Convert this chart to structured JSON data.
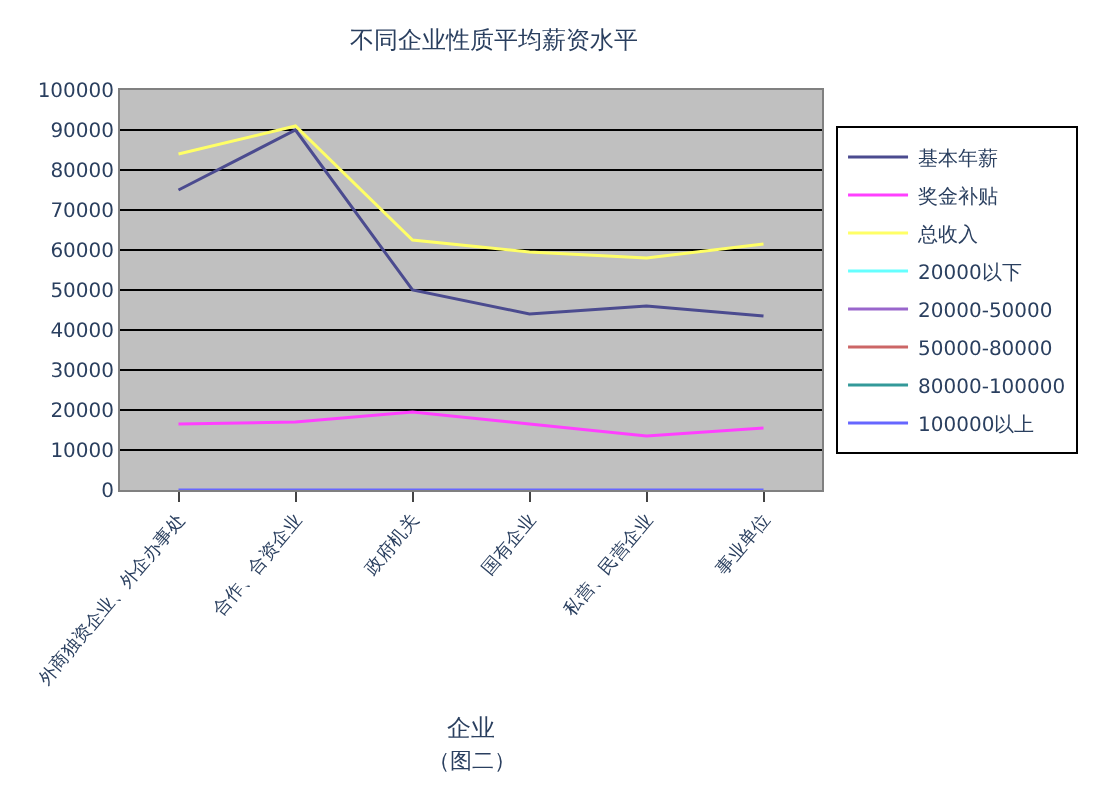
{
  "chart_data": {
    "type": "line",
    "title": "不同企业性质平均薪资水平",
    "xlabel": "企业",
    "categories": [
      "外商独资企业、外企办事处",
      "合作、合资企业",
      "政府机关",
      "国有企业",
      "私营、民营企业",
      "事业单位"
    ],
    "series": [
      {
        "name": "基本年薪",
        "color": "#4b4b8f",
        "values": [
          75000,
          90000,
          50000,
          44000,
          46000,
          43500
        ]
      },
      {
        "name": "奖金补贴",
        "color": "#ff40ff",
        "values": [
          16500,
          17000,
          19500,
          16500,
          13500,
          15500
        ]
      },
      {
        "name": "总收入",
        "color": "#ffff66",
        "values": [
          84000,
          91000,
          62500,
          59500,
          58000,
          61500
        ]
      },
      {
        "name": "20000以下",
        "color": "#66ffff",
        "values": [
          null,
          null,
          null,
          null,
          null,
          null
        ]
      },
      {
        "name": "20000-50000",
        "color": "#9966cc",
        "values": [
          null,
          null,
          null,
          null,
          null,
          null
        ]
      },
      {
        "name": "50000-80000",
        "color": "#cc6666",
        "values": [
          null,
          null,
          null,
          null,
          null,
          null
        ]
      },
      {
        "name": "80000-100000",
        "color": "#339999",
        "values": [
          null,
          null,
          null,
          null,
          null,
          null
        ]
      },
      {
        "name": "100000以上",
        "color": "#6666ff",
        "values": [
          0,
          0,
          0,
          0,
          0,
          0
        ]
      }
    ],
    "ylim": [
      0,
      100000
    ],
    "yticks": [
      0,
      10000,
      20000,
      30000,
      40000,
      50000,
      60000,
      70000,
      80000,
      90000,
      100000
    ],
    "grid": "y",
    "legend": "right",
    "marker": "none",
    "annotations": [
      "（图二）"
    ]
  }
}
